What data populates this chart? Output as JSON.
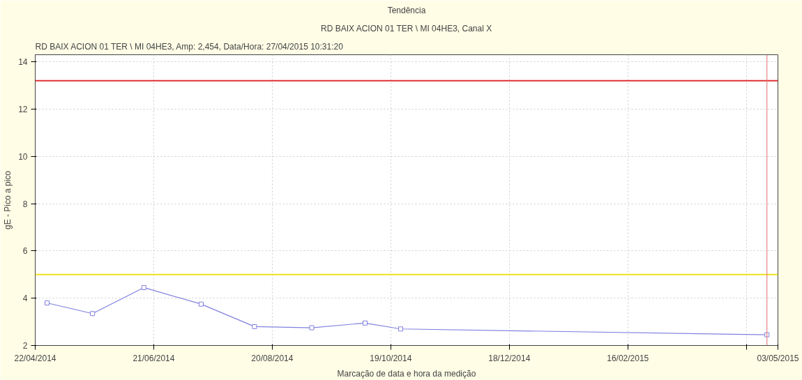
{
  "chart_data": {
    "type": "line",
    "title": "Tendência",
    "subtitle": "RD BAIX ACION 01 TER \\ MI 04HE3, Canal X",
    "annotations": [
      "RD BAIX ACION 01 TER \\ MI 04HE3, Amp: 2,454, Data/Hora: 27/04/2015 10:31:20"
    ],
    "xlabel": "Marcação de data e hora da medição",
    "ylabel": "gE - Pico a pico",
    "x": [
      "2014-04-28",
      "2014-05-21",
      "2014-06-16",
      "2014-07-15",
      "2014-08-11",
      "2014-09-09",
      "2014-10-06",
      "2014-10-24",
      "2015-04-27T10:31"
    ],
    "series": [
      {
        "color": "#8080e0",
        "values": [
          3.8,
          3.35,
          4.45,
          3.75,
          2.8,
          2.75,
          2.95,
          2.7,
          2.454
        ]
      }
    ],
    "marker": "square",
    "grid": true,
    "xlim": [
      "2014-04-22",
      "2015-05-03"
    ],
    "xticks": [
      {
        "value": "2014-04-22",
        "label": "22/04/2014"
      },
      {
        "value": "2014-06-21",
        "label": "21/06/2014"
      },
      {
        "value": "2014-08-20",
        "label": "20/08/2014"
      },
      {
        "value": "2014-10-19",
        "label": "19/10/2014"
      },
      {
        "value": "2014-12-18",
        "label": "18/12/2014"
      },
      {
        "value": "2015-02-16",
        "label": "16/02/2015"
      },
      {
        "value": "2015-04-17",
        "label": null
      },
      {
        "value": "2015-05-03",
        "label": "03/05/2015"
      }
    ],
    "ylim": [
      2,
      14.3
    ],
    "yticks": [
      2,
      4,
      6,
      8,
      10,
      12,
      14
    ],
    "ref_lines": [
      {
        "axis": "y",
        "value": 13.2,
        "color": "#e03030"
      },
      {
        "axis": "y",
        "value": 5,
        "color": "#f0e020"
      },
      {
        "axis": "x",
        "value": "2015-04-27T10:31",
        "color": "#e07070"
      }
    ]
  }
}
